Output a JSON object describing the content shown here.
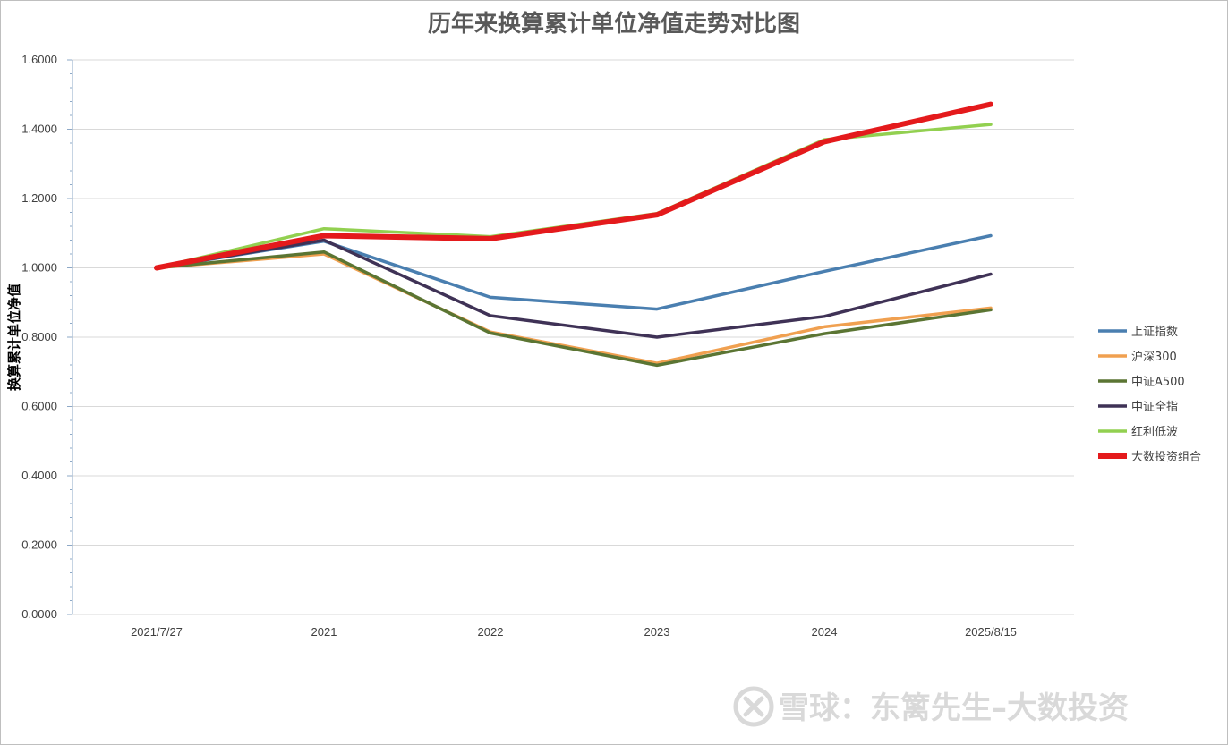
{
  "chart_data": {
    "type": "line",
    "title": "历年来换算累计单位净值走势对比图",
    "ylabel": "换算累计单位净值",
    "xlabel": "",
    "categories": [
      "2021/7/27",
      "2021",
      "2022",
      "2023",
      "2024",
      "2025/8/15"
    ],
    "y_ticks": [
      "0.0000",
      "0.2000",
      "0.4000",
      "0.6000",
      "0.8000",
      "1.0000",
      "1.2000",
      "1.4000",
      "1.6000"
    ],
    "ylim": [
      0,
      1.6
    ],
    "grid": true,
    "legend_position": "right",
    "series": [
      {
        "name": "上证指数",
        "color": "#4a7fb0",
        "values": [
          1.0,
          1.077,
          0.915,
          0.881,
          0.99,
          1.093
        ]
      },
      {
        "name": "沪深300",
        "color": "#f0a050",
        "values": [
          1.0,
          1.04,
          0.815,
          0.725,
          0.83,
          0.884
        ]
      },
      {
        "name": "中证A500",
        "color": "#5b7533",
        "values": [
          1.0,
          1.046,
          0.812,
          0.719,
          0.81,
          0.879
        ]
      },
      {
        "name": "中证全指",
        "color": "#3f3256",
        "values": [
          1.0,
          1.08,
          0.862,
          0.8,
          0.86,
          0.982
        ]
      },
      {
        "name": "红利低波",
        "color": "#92d050",
        "values": [
          1.0,
          1.113,
          1.09,
          1.157,
          1.37,
          1.414
        ]
      },
      {
        "name": "大数投资组合",
        "color": "#e41a1c",
        "values": [
          1.0,
          1.093,
          1.084,
          1.153,
          1.364,
          1.472
        ]
      }
    ]
  },
  "watermark": {
    "text": "雪球：东篱先生–大数投资",
    "icon": "xueqiu-logo-icon"
  }
}
